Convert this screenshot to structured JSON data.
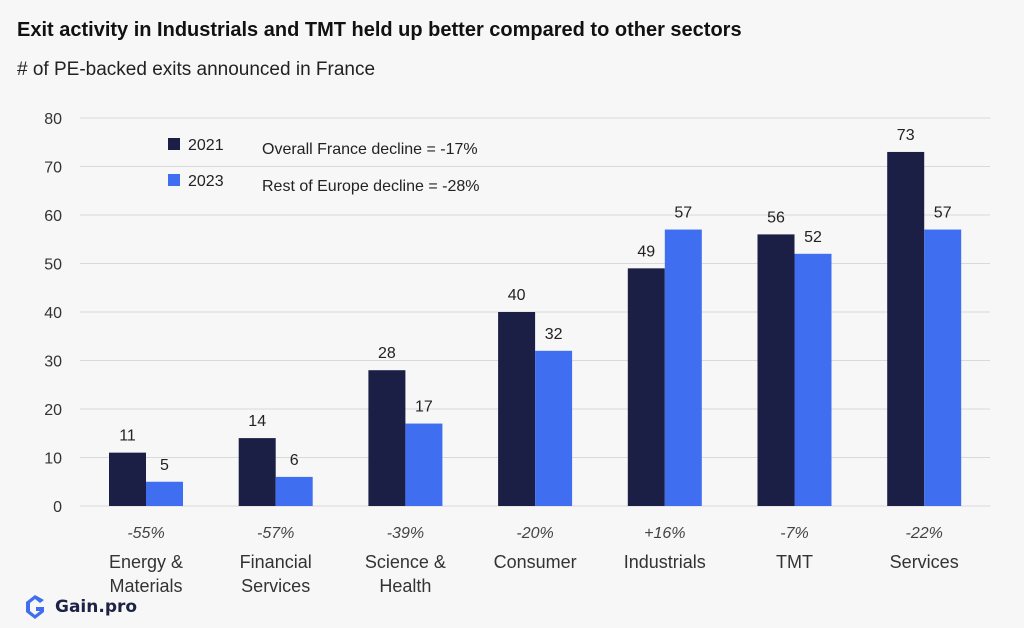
{
  "title": "Exit activity in Industrials and TMT held up better compared to other sectors",
  "subtitle": "# of PE-backed exits announced in France",
  "logo_text": "Gain.pro",
  "legend": {
    "notes": [
      "Overall France decline  =  -17%",
      "Rest of Europe decline = -28%"
    ]
  },
  "colors": {
    "2021": "#1c1f45",
    "2023": "#3f6ef0",
    "grid": "#d9d9d9",
    "text": "#333333",
    "logo": "#3f6ef0"
  },
  "chart_data": {
    "type": "bar",
    "categories": [
      [
        "Energy &",
        "Materials"
      ],
      [
        "Financial",
        "Services"
      ],
      [
        "Science &",
        "Health"
      ],
      [
        "Consumer"
      ],
      [
        "Industrials"
      ],
      [
        "TMT"
      ],
      [
        "Services"
      ]
    ],
    "series": [
      {
        "name": "2021",
        "values": [
          11,
          14,
          28,
          40,
          49,
          56,
          73
        ]
      },
      {
        "name": "2023",
        "values": [
          5,
          6,
          17,
          32,
          57,
          52,
          57
        ]
      }
    ],
    "change_labels": [
      "-55%",
      "-57%",
      "-39%",
      "-20%",
      "+16%",
      "-7%",
      "-22%"
    ],
    "ylim": [
      0,
      80
    ],
    "yticks": [
      0,
      10,
      20,
      30,
      40,
      50,
      60,
      70,
      80
    ],
    "grid": true,
    "legend_position": "top-left"
  }
}
